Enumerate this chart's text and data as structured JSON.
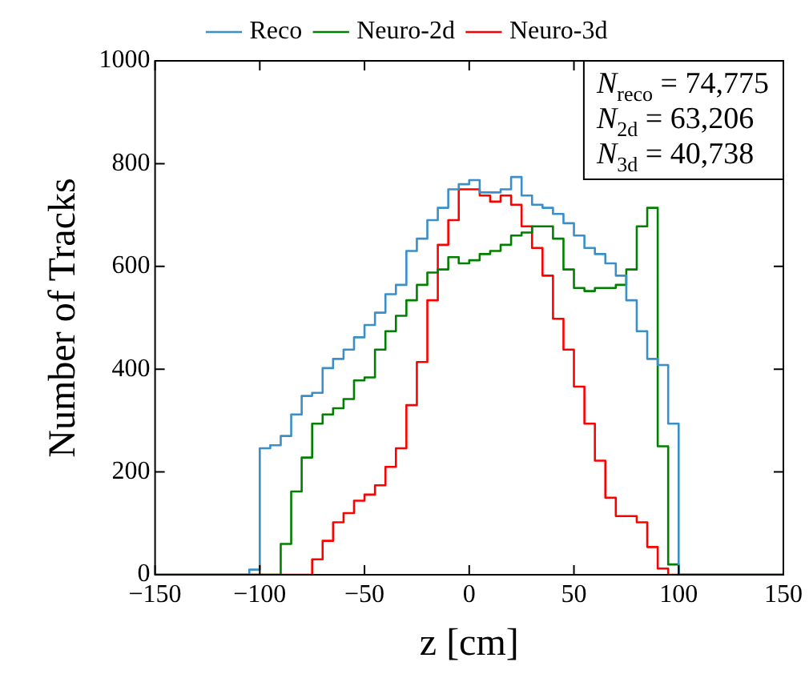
{
  "chart_data": {
    "type": "histogram",
    "xlabel": "z [cm]",
    "ylabel": "Number of Tracks",
    "bins": [
      -150,
      -145,
      -140,
      -135,
      -130,
      -125,
      -120,
      -115,
      -110,
      -105,
      -100,
      -95,
      -90,
      -85,
      -80,
      -75,
      -70,
      -65,
      -60,
      -55,
      -50,
      -45,
      -40,
      -35,
      -30,
      -25,
      -20,
      -15,
      -10,
      -5,
      0,
      5,
      10,
      15,
      20,
      25,
      30,
      35,
      40,
      45,
      50,
      55,
      60,
      65,
      70,
      75,
      80,
      85,
      90,
      95,
      100,
      105,
      110,
      115,
      120,
      125,
      130,
      135,
      140,
      145,
      150
    ],
    "series": [
      {
        "name": "Reco",
        "color": "#3a8fc8",
        "values": [
          0,
          0,
          0,
          0,
          0,
          0,
          0,
          0,
          0,
          10,
          246,
          252,
          270,
          312,
          348,
          354,
          402,
          420,
          438,
          462,
          486,
          510,
          546,
          564,
          630,
          654,
          690,
          714,
          750,
          760,
          768,
          744,
          744,
          750,
          774,
          738,
          720,
          714,
          702,
          684,
          660,
          636,
          624,
          606,
          582,
          534,
          474,
          420,
          408,
          294,
          0,
          0,
          0,
          0,
          0,
          0,
          0,
          0,
          0,
          0
        ]
      },
      {
        "name": "Neuro-2d",
        "color": "#008000",
        "values": [
          0,
          0,
          0,
          0,
          0,
          0,
          0,
          0,
          0,
          0,
          0,
          0,
          60,
          162,
          228,
          294,
          312,
          324,
          342,
          378,
          384,
          438,
          474,
          504,
          534,
          564,
          588,
          594,
          618,
          606,
          612,
          624,
          630,
          642,
          660,
          666,
          678,
          678,
          654,
          594,
          558,
          552,
          558,
          558,
          564,
          594,
          678,
          714,
          250,
          20,
          0,
          0,
          0,
          0,
          0,
          0,
          0,
          0,
          0,
          0
        ]
      },
      {
        "name": "Neuro-3d",
        "color": "#ff0000",
        "values": [
          0,
          0,
          0,
          0,
          0,
          0,
          0,
          0,
          0,
          0,
          0,
          0,
          0,
          0,
          0,
          30,
          66,
          102,
          120,
          144,
          156,
          174,
          210,
          246,
          330,
          414,
          534,
          642,
          690,
          750,
          750,
          738,
          726,
          738,
          720,
          678,
          636,
          582,
          498,
          438,
          366,
          294,
          222,
          150,
          114,
          114,
          102,
          54,
          12,
          0,
          0,
          0,
          0,
          0,
          0,
          0,
          0,
          0,
          0,
          0
        ]
      }
    ],
    "xlim": [
      -150,
      150
    ],
    "xticks": [
      -150,
      -100,
      -50,
      0,
      50,
      100,
      150
    ],
    "ylim": [
      0,
      1000
    ],
    "yticks": [
      0,
      200,
      400,
      600,
      800,
      1000
    ],
    "grid": false,
    "legend": "top",
    "annotations": [
      "N$_{reco}$ = 74,775",
      "N$_{2d}$ = 63,206",
      "N$_{3d}$ = 40,738"
    ]
  }
}
